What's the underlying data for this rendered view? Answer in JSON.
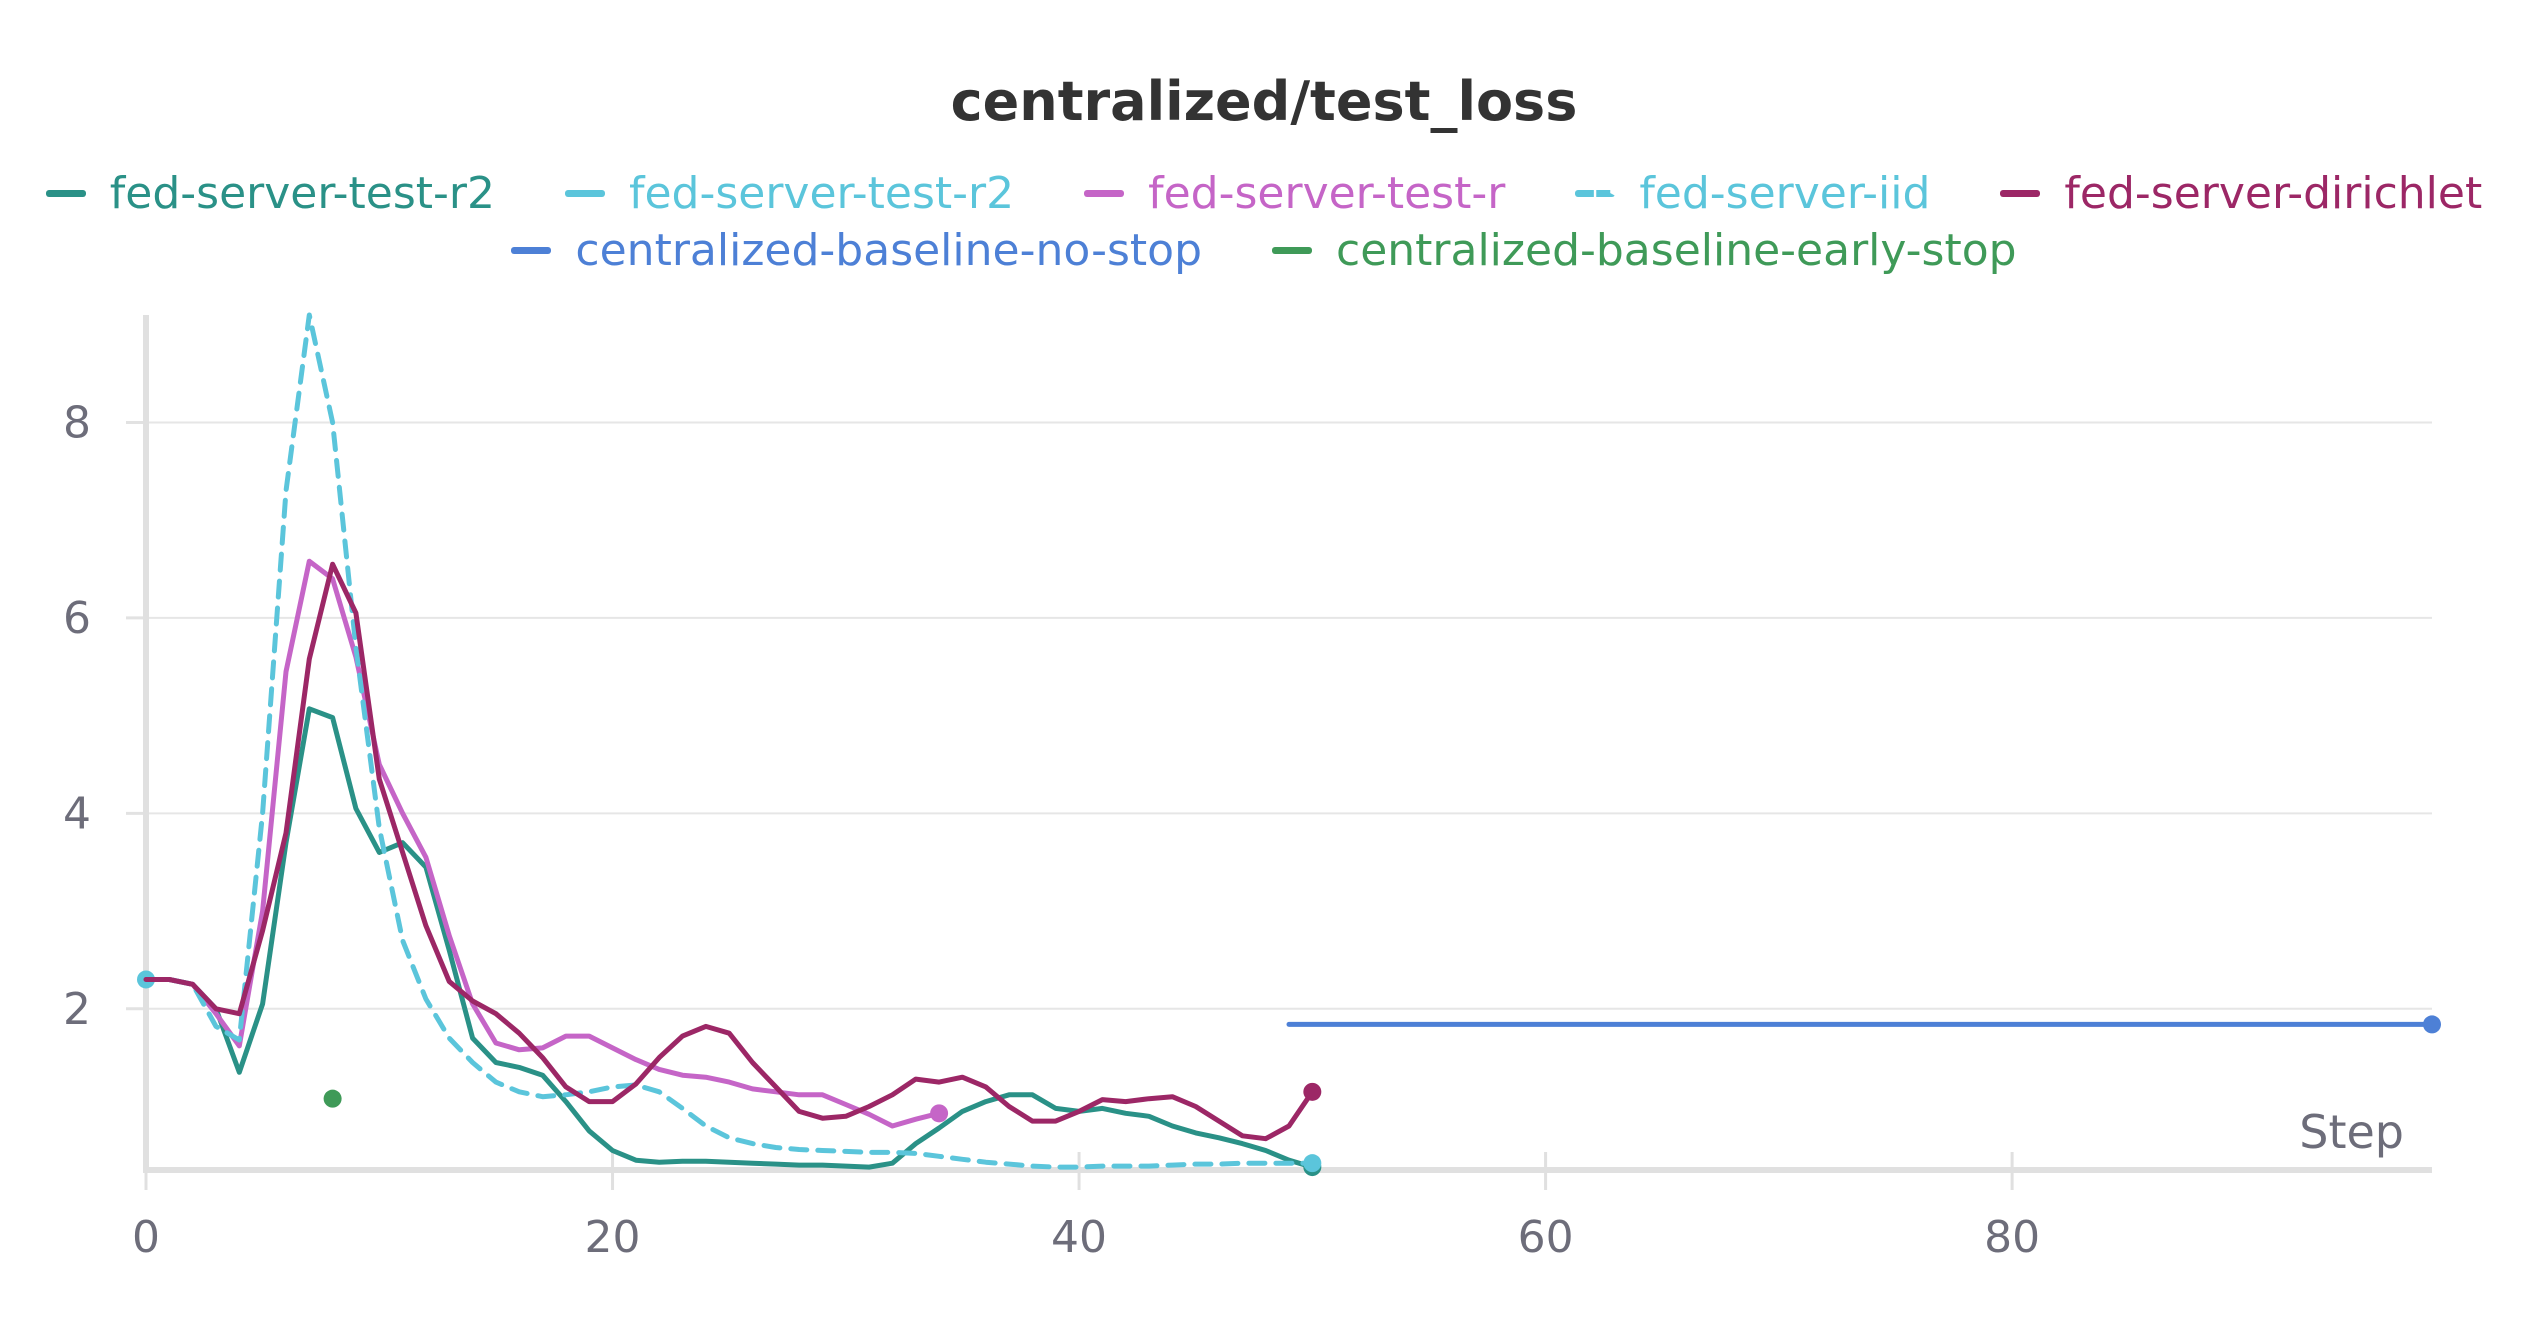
{
  "chart_data": {
    "type": "line",
    "title": "centralized/test_loss",
    "xlabel": "Step",
    "ylabel": "",
    "xlim": [
      0,
      98
    ],
    "ylim": [
      0.35,
      9.1
    ],
    "x_ticks": [
      0,
      20,
      40,
      60,
      80
    ],
    "y_ticks": [
      2,
      4,
      6,
      8
    ],
    "grid": true,
    "legend_position": "top-center",
    "series": [
      {
        "name": "fed-server-test-r2",
        "color": "#2a9187",
        "style": "solid",
        "x": [
          0,
          1,
          2,
          3,
          4,
          5,
          6,
          7,
          8,
          9,
          10,
          11,
          12,
          13,
          14,
          15,
          16,
          17,
          18,
          19,
          20,
          21,
          22,
          23,
          24,
          25,
          26,
          27,
          28,
          29,
          30,
          31,
          32,
          33,
          34,
          35,
          36,
          37,
          38,
          39,
          40,
          41,
          42,
          43,
          44,
          45,
          46,
          47,
          48,
          49,
          50
        ],
        "y": [
          2.3,
          2.3,
          2.25,
          2.0,
          1.35,
          2.05,
          3.7,
          5.07,
          4.98,
          4.05,
          3.6,
          3.7,
          3.45,
          2.6,
          1.7,
          1.45,
          1.4,
          1.32,
          1.05,
          0.75,
          0.55,
          0.45,
          0.43,
          0.44,
          0.44,
          0.43,
          0.42,
          0.41,
          0.4,
          0.4,
          0.39,
          0.38,
          0.42,
          0.62,
          0.78,
          0.95,
          1.05,
          1.12,
          1.12,
          0.98,
          0.95,
          0.98,
          0.93,
          0.9,
          0.8,
          0.73,
          0.68,
          0.62,
          0.55,
          0.45,
          0.38
        ],
        "end_marker": true
      },
      {
        "name": "fed-server-test-r2",
        "color": "#5bc5db",
        "style": "solid",
        "x": [
          0
        ],
        "y": [
          2.3
        ],
        "end_marker": true
      },
      {
        "name": "fed-server-test-r",
        "color": "#c565c7",
        "style": "solid",
        "x": [
          0,
          1,
          2,
          3,
          4,
          5,
          6,
          7,
          8,
          9,
          10,
          11,
          12,
          13,
          14,
          15,
          16,
          17,
          18,
          19,
          20,
          21,
          22,
          23,
          24,
          25,
          26,
          27,
          28,
          29,
          30,
          31,
          32,
          33,
          34
        ],
        "y": [
          2.3,
          2.3,
          2.25,
          1.95,
          1.62,
          3.0,
          5.45,
          6.58,
          6.4,
          5.6,
          4.5,
          4.0,
          3.55,
          2.75,
          2.05,
          1.65,
          1.58,
          1.6,
          1.72,
          1.72,
          1.6,
          1.48,
          1.38,
          1.32,
          1.3,
          1.25,
          1.18,
          1.15,
          1.12,
          1.12,
          1.02,
          0.92,
          0.8,
          0.87,
          0.93
        ],
        "end_marker": true
      },
      {
        "name": "fed-server-iid",
        "color": "#5bc5db",
        "style": "dashed",
        "x": [
          0,
          1,
          2,
          3,
          4,
          5,
          6,
          7,
          8,
          9,
          10,
          11,
          12,
          13,
          14,
          15,
          16,
          17,
          18,
          19,
          20,
          21,
          22,
          23,
          24,
          25,
          26,
          27,
          28,
          29,
          30,
          31,
          32,
          33,
          34,
          35,
          36,
          37,
          38,
          39,
          40,
          41,
          42,
          43,
          44,
          45,
          46,
          47,
          48,
          49,
          50
        ],
        "y": [
          2.3,
          2.3,
          2.25,
          1.82,
          1.68,
          4.0,
          7.3,
          9.1,
          8.0,
          5.7,
          3.85,
          2.7,
          2.1,
          1.7,
          1.45,
          1.25,
          1.15,
          1.1,
          1.12,
          1.15,
          1.2,
          1.22,
          1.15,
          0.98,
          0.8,
          0.68,
          0.62,
          0.58,
          0.56,
          0.55,
          0.54,
          0.53,
          0.53,
          0.52,
          0.49,
          0.46,
          0.43,
          0.41,
          0.39,
          0.38,
          0.38,
          0.39,
          0.39,
          0.39,
          0.4,
          0.41,
          0.41,
          0.42,
          0.42,
          0.42,
          0.42
        ],
        "end_marker": true
      },
      {
        "name": "fed-server-dirichlet",
        "color": "#9c2766",
        "style": "solid",
        "x": [
          0,
          1,
          2,
          3,
          4,
          5,
          6,
          7,
          8,
          9,
          10,
          11,
          12,
          13,
          14,
          15,
          16,
          17,
          18,
          19,
          20,
          21,
          22,
          23,
          24,
          25,
          26,
          27,
          28,
          29,
          30,
          31,
          32,
          33,
          34,
          35,
          36,
          37,
          38,
          39,
          40,
          41,
          42,
          43,
          44,
          45,
          46,
          47,
          48,
          49,
          50
        ],
        "y": [
          2.3,
          2.3,
          2.25,
          2.0,
          1.95,
          2.8,
          3.8,
          5.58,
          6.55,
          6.05,
          4.35,
          3.6,
          2.85,
          2.28,
          2.08,
          1.95,
          1.75,
          1.5,
          1.2,
          1.05,
          1.05,
          1.23,
          1.5,
          1.72,
          1.82,
          1.75,
          1.45,
          1.2,
          0.95,
          0.88,
          0.9,
          1.0,
          1.12,
          1.28,
          1.25,
          1.3,
          1.2,
          1.0,
          0.85,
          0.85,
          0.95,
          1.07,
          1.05,
          1.08,
          1.1,
          1.0,
          0.85,
          0.7,
          0.67,
          0.8,
          1.15
        ],
        "end_marker": true
      },
      {
        "name": "centralized-baseline-no-stop",
        "color": "#4d80d6",
        "style": "solid",
        "x": [
          49,
          98
        ],
        "y": [
          1.84,
          1.84
        ],
        "end_marker": true
      },
      {
        "name": "centralized-baseline-early-stop",
        "color": "#3f9a58",
        "style": "solid",
        "x": [
          8
        ],
        "y": [
          1.08
        ],
        "end_marker": true
      }
    ]
  }
}
